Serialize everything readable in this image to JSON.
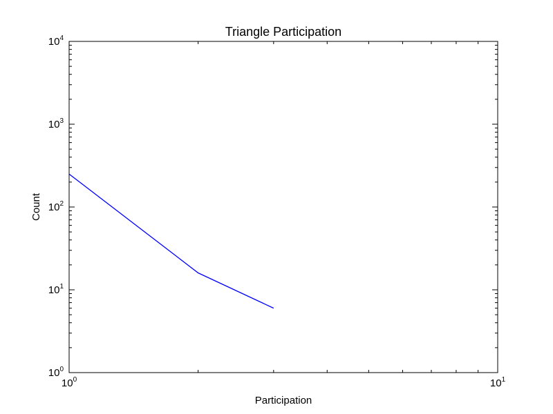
{
  "chart_data": {
    "type": "line",
    "title": "Triangle Participation",
    "xlabel": "Participation",
    "ylabel": "Count",
    "xscale": "log",
    "yscale": "log",
    "xlim": [
      1,
      10
    ],
    "ylim": [
      1,
      10000
    ],
    "grid": false,
    "x_ticks": [
      {
        "base": "10",
        "exp": "0",
        "value": 1
      },
      {
        "base": "10",
        "exp": "1",
        "value": 10
      }
    ],
    "y_ticks": [
      {
        "base": "10",
        "exp": "0",
        "value": 1
      },
      {
        "base": "10",
        "exp": "1",
        "value": 10
      },
      {
        "base": "10",
        "exp": "2",
        "value": 100
      },
      {
        "base": "10",
        "exp": "3",
        "value": 1000
      },
      {
        "base": "10",
        "exp": "4",
        "value": 10000
      }
    ],
    "series": [
      {
        "color": "#0000ff",
        "x": [
          1,
          2,
          3
        ],
        "y": [
          250,
          16,
          6
        ]
      }
    ]
  }
}
